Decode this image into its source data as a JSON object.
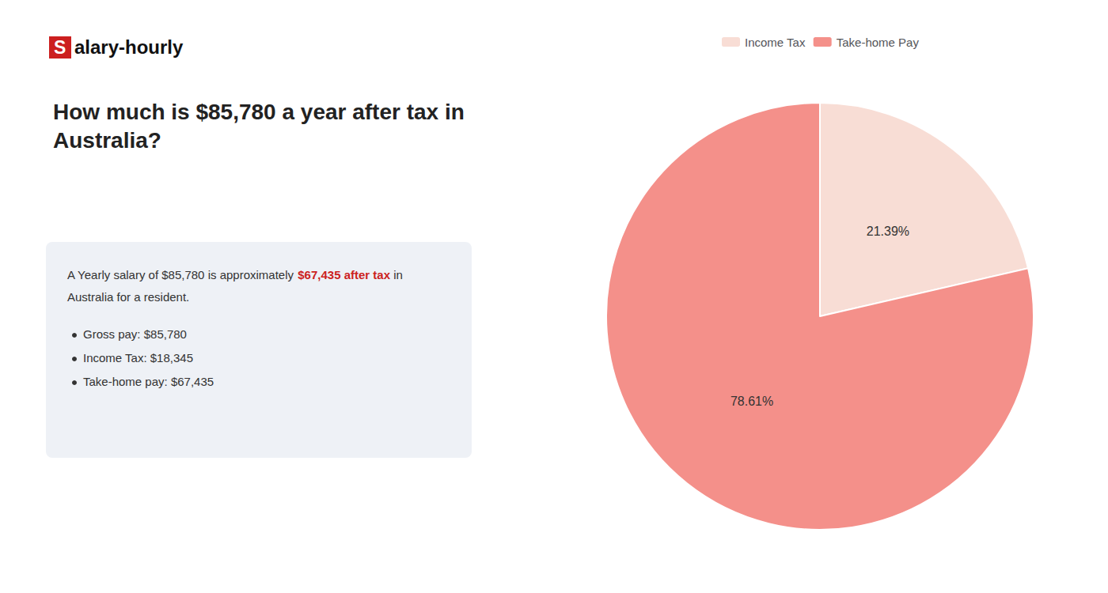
{
  "chart_data": {
    "type": "pie",
    "title": "How much is $85,780 a year after tax in\nAustralia?",
    "categories": [
      "Income Tax",
      "Take-home Pay"
    ],
    "values": [
      21.39,
      78.61
    ],
    "value_labels": [
      "21.39%",
      "78.61%"
    ],
    "colors": [
      "#f8ddd5",
      "#f4908a"
    ],
    "data_labels": true,
    "legend": "top",
    "annotations": [
      {
        "text": "S",
        "color": "#cc1f1f"
      },
      {
        "text": "alary-hourly"
      },
      {
        "text": "A Yearly salary of $85,780 is approximately "
      },
      {
        "text": "$67,435 after tax",
        "color": "#cc1f1f"
      },
      {
        "text": " in"
      },
      {
        "text": "Australia for a resident."
      },
      {
        "text": "Gross pay: $85,780"
      },
      {
        "text": "Income Tax: $18,345"
      },
      {
        "text": "Take-home pay: $67,435"
      }
    ]
  }
}
